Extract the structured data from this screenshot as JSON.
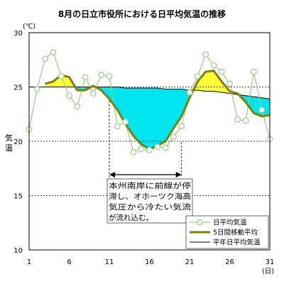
{
  "chart_data": {
    "type": "line",
    "title": "8月の日立市役所における日平均気温の推移",
    "ylabel": "気温",
    "y_unit": "(℃)",
    "x_unit": "(日)",
    "xlim": [
      1,
      31
    ],
    "ylim": [
      10,
      30
    ],
    "x_ticks": [
      1,
      6,
      11,
      16,
      21,
      26,
      31
    ],
    "y_ticks": [
      10,
      15,
      20,
      25,
      30
    ],
    "grid": "horizontal dashed",
    "legend": "bottom-right",
    "days": [
      1,
      2,
      3,
      4,
      5,
      6,
      7,
      8,
      9,
      10,
      11,
      12,
      13,
      14,
      15,
      16,
      17,
      18,
      19,
      20,
      21,
      22,
      23,
      24,
      25,
      26,
      27,
      28,
      29,
      30,
      31
    ],
    "series": [
      {
        "name": "日平均気温",
        "values": [
          21.1,
          24.8,
          27.6,
          28.2,
          26.0,
          24.2,
          23.2,
          25.9,
          24.4,
          26.1,
          26.0,
          21.4,
          21.8,
          19.0,
          19.3,
          19.2,
          19.5,
          19.4,
          20.4,
          21.4,
          24.5,
          26.0,
          28.0,
          27.0,
          26.4,
          25.3,
          22.0,
          21.9,
          26.4,
          22.9,
          20.2
        ],
        "color": "#9acd8a"
      },
      {
        "name": "5日間移動平均",
        "values": [
          null,
          null,
          25.3,
          25.5,
          26.1,
          25.9,
          24.7,
          24.7,
          25.1,
          24.7,
          23.9,
          22.9,
          21.6,
          20.5,
          19.7,
          19.3,
          19.6,
          20.0,
          21.2,
          22.3,
          24.0,
          25.5,
          26.4,
          26.5,
          25.5,
          24.6,
          24.4,
          23.6,
          22.6,
          22.3,
          22.4
        ],
        "color": "#808000"
      },
      {
        "name": "平年日平均気温",
        "values": [
          25.0,
          25.0,
          25.0,
          25.0,
          25.0,
          25.0,
          25.0,
          25.0,
          25.0,
          25.0,
          25.0,
          25.0,
          24.9,
          24.9,
          24.9,
          24.9,
          24.9,
          24.8,
          24.8,
          24.8,
          24.7,
          24.7,
          24.6,
          24.6,
          24.5,
          24.4,
          24.3,
          24.2,
          24.1,
          24.0,
          23.9
        ],
        "color": "#000000"
      }
    ],
    "fill_above_color": "#ffff33",
    "fill_below_color": "#00e5ee",
    "annotation": {
      "lines": [
        "本州南岸に前線が停",
        "滞し、オホーツク海高",
        "気圧から冷たい気流",
        "が流れ込む。"
      ],
      "span_start": 11,
      "span_end": 20
    }
  }
}
